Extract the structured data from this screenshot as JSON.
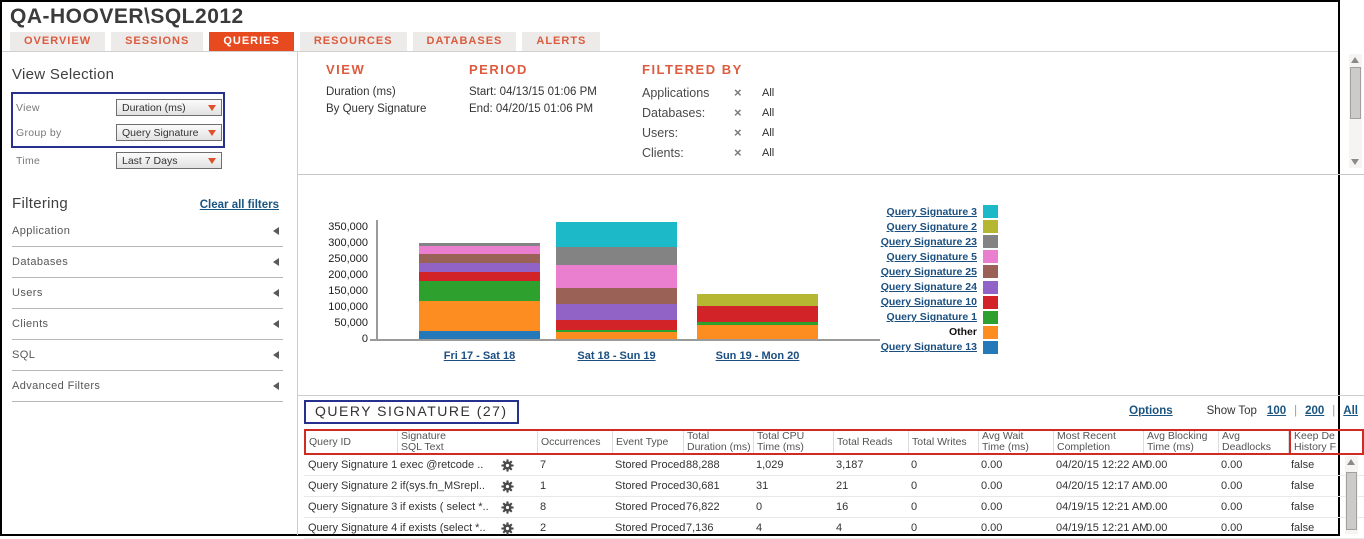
{
  "window": {
    "title": "QA-HOOVER\\SQL2012"
  },
  "tabs": [
    {
      "label": "OVERVIEW",
      "active": false
    },
    {
      "label": "SESSIONS",
      "active": false
    },
    {
      "label": "QUERIES",
      "active": true
    },
    {
      "label": "RESOURCES",
      "active": false
    },
    {
      "label": "DATABASES",
      "active": false
    },
    {
      "label": "ALERTS",
      "active": false
    }
  ],
  "sidebar": {
    "view_selection": {
      "title": "View Selection",
      "view": {
        "label": "View",
        "value": "Duration (ms)"
      },
      "group_by": {
        "label": "Group by",
        "value": "Query Signature"
      },
      "time": {
        "label": "Time",
        "value": "Last 7 Days"
      }
    },
    "filtering": {
      "title": "Filtering",
      "clear_all": "Clear all filters",
      "sections": [
        "Application",
        "Databases",
        "Users",
        "Clients",
        "SQL",
        "Advanced Filters"
      ]
    }
  },
  "summary": {
    "view": {
      "heading": "VIEW",
      "line1": "Duration (ms)",
      "line2": "By Query Signature"
    },
    "period": {
      "heading": "PERIOD",
      "start": "Start: 04/13/15 01:06 PM",
      "end": "End: 04/20/15 01:06 PM"
    },
    "filtered_by": {
      "heading": "FILTERED BY",
      "rows": [
        {
          "label": "Applications",
          "value": "All"
        },
        {
          "label": "Databases:",
          "value": "All"
        },
        {
          "label": "Users:",
          "value": "All"
        },
        {
          "label": "Clients:",
          "value": "All"
        }
      ]
    }
  },
  "chart_data": {
    "type": "bar",
    "stacked": true,
    "title": "",
    "xlabel": "",
    "ylabel": "",
    "ylim": [
      0,
      350000
    ],
    "yticks": [
      "0",
      "50,000",
      "100,000",
      "150,000",
      "200,000",
      "250,000",
      "300,000",
      "350,000"
    ],
    "categories": [
      "Fri 17 - Sat 18",
      "Sat 18 - Sun 19",
      "Sun 19 - Mon 20"
    ],
    "legend_position": "right",
    "grid": false,
    "series": [
      {
        "name": "Query Signature 13",
        "color": "#2679b8",
        "values": [
          26000,
          0,
          0
        ]
      },
      {
        "name": "Other",
        "color": "#fd8d20",
        "values": [
          92000,
          21000,
          44000
        ]
      },
      {
        "name": "Query Signature 1",
        "color": "#2da02d",
        "values": [
          64000,
          7000,
          10000
        ]
      },
      {
        "name": "Query Signature 10",
        "color": "#d22328",
        "values": [
          29000,
          31000,
          50000
        ]
      },
      {
        "name": "Query Signature 24",
        "color": "#9263c6",
        "values": [
          26000,
          52000,
          0
        ]
      },
      {
        "name": "Query Signature 25",
        "color": "#9a6257",
        "values": [
          30000,
          47000,
          0
        ]
      },
      {
        "name": "Query Signature 5",
        "color": "#e97fce",
        "values": [
          24000,
          73000,
          0
        ]
      },
      {
        "name": "Query Signature 23",
        "color": "#838383",
        "values": [
          10000,
          58000,
          0
        ]
      },
      {
        "name": "Query Signature 2",
        "color": "#b5b733",
        "values": [
          0,
          0,
          37000
        ]
      },
      {
        "name": "Query Signature 3",
        "color": "#1cb9c9",
        "values": [
          0,
          77000,
          0
        ]
      }
    ],
    "legend_order": [
      "Query Signature 3",
      "Query Signature 2",
      "Query Signature 23",
      "Query Signature 5",
      "Query Signature 25",
      "Query Signature 24",
      "Query Signature 10",
      "Query Signature 1",
      "Other",
      "Query Signature 13"
    ]
  },
  "table": {
    "title": "QUERY SIGNATURE (27)",
    "options_label": "Options",
    "show_top_label": "Show Top",
    "show_top_options": [
      "100",
      "200",
      "All"
    ],
    "columns": [
      {
        "lines": [
          "Query ID"
        ],
        "width": 92
      },
      {
        "lines": [
          "Signature",
          "SQL Text"
        ],
        "width": 140
      },
      {
        "lines": [
          "Occurrences"
        ],
        "width": 75
      },
      {
        "lines": [
          "Event Type"
        ],
        "width": 71
      },
      {
        "lines": [
          "Total",
          "Duration (ms)"
        ],
        "width": 70
      },
      {
        "lines": [
          "Total CPU",
          "Time (ms)"
        ],
        "width": 80
      },
      {
        "lines": [
          "Total Reads"
        ],
        "width": 75
      },
      {
        "lines": [
          "Total Writes"
        ],
        "width": 70
      },
      {
        "lines": [
          "Avg Wait",
          "Time (ms)"
        ],
        "width": 75
      },
      {
        "lines": [
          "Most Recent",
          "Completion"
        ],
        "width": 90
      },
      {
        "lines": [
          "Avg Blocking",
          "Time (ms)"
        ],
        "width": 75
      },
      {
        "lines": [
          "Avg",
          "Deadlocks"
        ],
        "width": 70
      },
      {
        "lines": [
          "Keep De",
          "History F"
        ],
        "width": 62
      }
    ],
    "rows": [
      {
        "cells": [
          "Query Signature 1",
          "exec @retcode ..",
          "7",
          "Stored Proced",
          "88,288",
          "1,029",
          "3,187",
          "0",
          "0.00",
          "04/20/15 12:22 AM",
          "0.00",
          "0.00",
          "false"
        ]
      },
      {
        "cells": [
          "Query Signature 2",
          "if(sys.fn_MSrepl..",
          "1",
          "Stored Proced",
          "30,681",
          "31",
          "21",
          "0",
          "0.00",
          "04/20/15 12:17 AM",
          "0.00",
          "0.00",
          "false"
        ]
      },
      {
        "cells": [
          "Query Signature 3",
          "if exists ( select *..",
          "8",
          "Stored Proced",
          "76,822",
          "0",
          "16",
          "0",
          "0.00",
          "04/19/15 12:21 AM",
          "0.00",
          "0.00",
          "false"
        ]
      },
      {
        "cells": [
          "Query Signature 4",
          "if exists (select *..",
          "2",
          "Stored Proced",
          "7,136",
          "4",
          "4",
          "0",
          "0.00",
          "04/19/15 12:21 AM",
          "0.00",
          "0.00",
          "false"
        ]
      }
    ]
  },
  "colors": {
    "accent_active_tab": "#e84a1f",
    "tab_inactive_text": "#dc5a3d",
    "section_heading": "#dd5b3e",
    "link_blue": "#1a5480",
    "navy_border": "#26318e",
    "red_border": "#cf2b24"
  }
}
